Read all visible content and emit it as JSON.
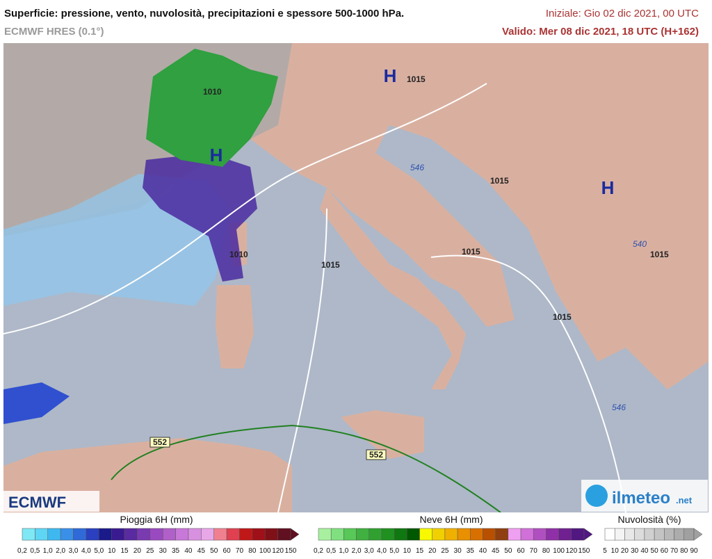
{
  "header": {
    "title": "Superficie: pressione, vento, nuvolosità, precipitazioni e spessore 500-1000 hPa.",
    "subtitle": "ECMWF HRES (0.1°)",
    "initial": "Iniziale: Gio 02 dic 2021, 00 UTC",
    "valid": "Valido: Mer 08 dic 2021, 18 UTC (H+162)"
  },
  "map": {
    "high_labels": [
      "H",
      "H",
      "H"
    ],
    "isobar_labels": [
      "1015",
      "1010",
      "1015",
      "1015",
      "1015",
      "1015",
      "1015",
      "1010"
    ],
    "thickness_labels": [
      "546",
      "540",
      "546",
      "552",
      "552"
    ],
    "logos": [
      "ECMWF",
      "ilmeteo",
      ".net"
    ]
  },
  "legends": [
    {
      "title": "Pioggia 6H (mm)",
      "labels": [
        "0,2",
        "0,5",
        "1,0",
        "2,0",
        "3,0",
        "4,0",
        "5,0",
        "10",
        "15",
        "20",
        "25",
        "30",
        "35",
        "40",
        "45",
        "50",
        "60",
        "70",
        "80",
        "100",
        "120",
        "150"
      ],
      "colors": [
        "#7fe8f5",
        "#5fd5f5",
        "#3fb8f0",
        "#3a90e8",
        "#2f6ad8",
        "#2a40c0",
        "#1a1a8a",
        "#3a1a90",
        "#5a2aa0",
        "#7a3ab0",
        "#9a4ac0",
        "#b060c8",
        "#c878d8",
        "#d890e0",
        "#e8a8e8",
        "#f08090",
        "#e04050",
        "#c01818",
        "#a01018",
        "#801018",
        "#601020"
      ]
    },
    {
      "title": "Neve 6H (mm)",
      "labels": [
        "0,2",
        "0,5",
        "1,0",
        "2,0",
        "3,0",
        "4,0",
        "5,0",
        "10",
        "15",
        "20",
        "25",
        "30",
        "35",
        "40",
        "45",
        "50",
        "60",
        "70",
        "80",
        "100",
        "120",
        "150"
      ],
      "colors": [
        "#a8f0a0",
        "#80e080",
        "#58c858",
        "#40b040",
        "#30a030",
        "#209020",
        "#107810",
        "#005800",
        "#f8f800",
        "#f0d000",
        "#f0b000",
        "#e89000",
        "#d87000",
        "#b85000",
        "#904010",
        "#f0a0f0",
        "#d070d8",
        "#b050c0",
        "#9030a8",
        "#702090",
        "#501880"
      ]
    },
    {
      "title": "Nuvolosità (%)",
      "labels": [
        "5",
        "10",
        "20",
        "30",
        "40",
        "50",
        "60",
        "70",
        "80",
        "90"
      ],
      "colors": [
        "#ffffff",
        "#f4f4f4",
        "#e8e8e8",
        "#dcdcdc",
        "#d0d0d0",
        "#c4c4c4",
        "#b8b8b8",
        "#acacac",
        "#a0a0a0"
      ]
    }
  ]
}
